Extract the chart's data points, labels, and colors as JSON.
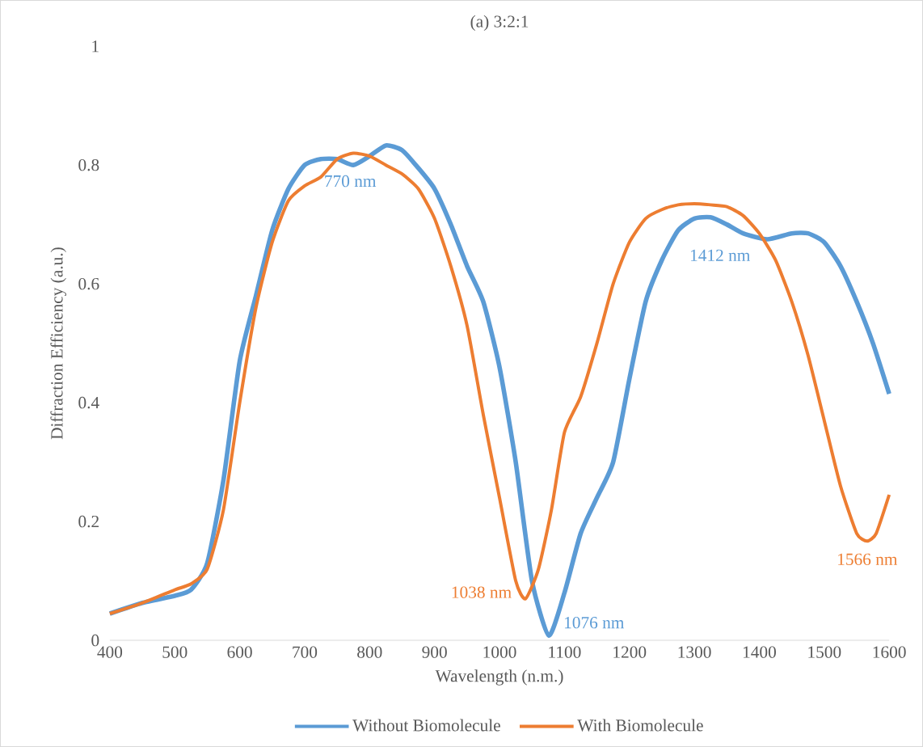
{
  "chart_data": {
    "type": "line",
    "title": "(a) 3:2:1",
    "xlabel": "Wavelength (n.m.)",
    "ylabel": "Diffraction Efficiency (a.u.)",
    "xlim": [
      400,
      1600
    ],
    "xticks": [
      400,
      500,
      600,
      700,
      800,
      900,
      1000,
      1100,
      1200,
      1300,
      1400,
      1500,
      1600
    ],
    "ylim": [
      0,
      1
    ],
    "yticks": [
      0,
      0.2,
      0.4,
      0.6,
      0.8,
      1
    ],
    "grid": false,
    "legend": "bottom",
    "series": [
      {
        "name": "Without Biomolecule",
        "color": "#5b9bd5",
        "x": [
          400,
          450,
          500,
          525,
          550,
          575,
          600,
          625,
          650,
          675,
          700,
          725,
          750,
          775,
          800,
          825,
          850,
          875,
          900,
          925,
          950,
          975,
          1000,
          1025,
          1050,
          1076,
          1100,
          1125,
          1150,
          1175,
          1200,
          1225,
          1250,
          1275,
          1300,
          1325,
          1350,
          1375,
          1412,
          1450,
          1475,
          1500,
          1525,
          1550,
          1575,
          1600
        ],
        "values": [
          0.045,
          0.063,
          0.075,
          0.085,
          0.13,
          0.27,
          0.47,
          0.58,
          0.69,
          0.76,
          0.8,
          0.81,
          0.81,
          0.8,
          0.815,
          0.833,
          0.825,
          0.795,
          0.76,
          0.7,
          0.63,
          0.57,
          0.46,
          0.3,
          0.1,
          0.008,
          0.08,
          0.18,
          0.24,
          0.3,
          0.44,
          0.57,
          0.64,
          0.69,
          0.71,
          0.712,
          0.7,
          0.685,
          0.675,
          0.685,
          0.685,
          0.67,
          0.63,
          0.57,
          0.5,
          0.415
        ]
      },
      {
        "name": "With Biomolecule",
        "color": "#ed7d31",
        "x": [
          400,
          450,
          500,
          525,
          550,
          575,
          600,
          625,
          650,
          675,
          700,
          725,
          750,
          775,
          800,
          825,
          850,
          875,
          900,
          925,
          950,
          975,
          1000,
          1025,
          1040,
          1060,
          1080,
          1100,
          1125,
          1150,
          1175,
          1200,
          1225,
          1250,
          1275,
          1300,
          1325,
          1350,
          1375,
          1400,
          1425,
          1450,
          1475,
          1500,
          1525,
          1550,
          1566,
          1580,
          1600
        ],
        "values": [
          0.045,
          0.063,
          0.085,
          0.095,
          0.12,
          0.22,
          0.4,
          0.56,
          0.67,
          0.74,
          0.765,
          0.78,
          0.81,
          0.82,
          0.815,
          0.8,
          0.785,
          0.76,
          0.71,
          0.63,
          0.53,
          0.38,
          0.24,
          0.1,
          0.07,
          0.12,
          0.22,
          0.35,
          0.41,
          0.5,
          0.6,
          0.67,
          0.71,
          0.725,
          0.733,
          0.735,
          0.733,
          0.73,
          0.715,
          0.685,
          0.64,
          0.57,
          0.48,
          0.37,
          0.26,
          0.18,
          0.167,
          0.18,
          0.245
        ]
      }
    ],
    "annotations": [
      {
        "text": "770 nm",
        "x": 770,
        "y": 0.8
      },
      {
        "text": "1038 nm",
        "x": 1038,
        "y": 0.07
      },
      {
        "text": "1076 nm",
        "x": 1076,
        "y": 0.008
      },
      {
        "text": "1412 nm",
        "x": 1412,
        "y": 0.675
      },
      {
        "text": "1566 nm",
        "x": 1566,
        "y": 0.167
      }
    ]
  }
}
